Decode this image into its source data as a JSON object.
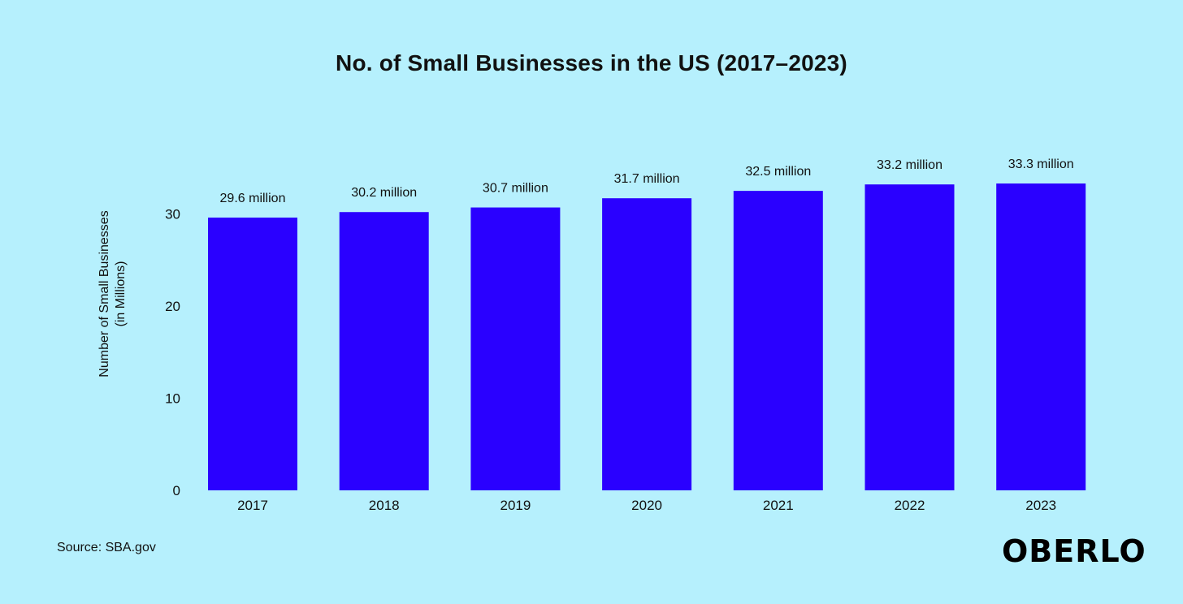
{
  "colors": {
    "background": "#b6f0fd",
    "bar": "#2a00ff",
    "text": "#111111"
  },
  "chart_data": {
    "type": "bar",
    "title": "No. of Small Businesses in the US (2017–2023)",
    "xlabel": "",
    "ylabel": "Number of Small Businesses\n(in Millions)",
    "ylabel_lines": [
      "Number of Small Businesses",
      "(in Millions)"
    ],
    "categories": [
      "2017",
      "2018",
      "2019",
      "2020",
      "2021",
      "2022",
      "2023"
    ],
    "values": [
      29.6,
      30.2,
      30.7,
      31.7,
      32.5,
      33.2,
      33.3
    ],
    "data_labels": [
      "29.6 million",
      "30.2 million",
      "30.7 million",
      "31.7 million",
      "32.5 million",
      "33.2 million",
      "33.3 million"
    ],
    "yticks": [
      0,
      10,
      20,
      30
    ],
    "ylim": [
      0,
      33.3
    ],
    "grid": false,
    "legend": "none"
  },
  "footer": {
    "source": "Source: SBA.gov",
    "logo": "OBERLO"
  }
}
